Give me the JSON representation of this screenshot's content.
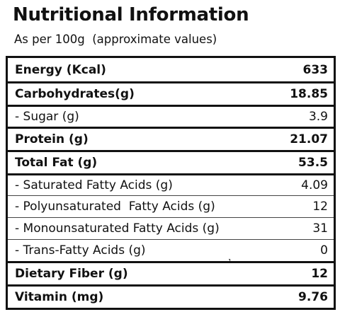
{
  "header": {
    "title": "Nutritional Information",
    "subtitle": "As per 100g  (approximate values)"
  },
  "table": {
    "rows": [
      {
        "label": "Energy (Kcal)",
        "value": "633",
        "bold": true
      },
      {
        "label": "Carbohydrates(g)",
        "value": "18.85",
        "bold": true
      },
      {
        "label": "- Sugar (g)",
        "value": "3.9",
        "bold": false
      },
      {
        "label": "Protein (g)",
        "value": "21.07",
        "bold": true
      },
      {
        "label": "Total Fat (g)",
        "value": "53.5",
        "bold": true
      },
      {
        "label": "- Saturated Fatty Acids (g)",
        "value": "4.09",
        "bold": false
      },
      {
        "label": "- Polyunsaturated  Fatty Acids (g)",
        "value": "12",
        "bold": false
      },
      {
        "label": "- Monounsaturated Fatty Acids (g)",
        "value": "31",
        "bold": false
      },
      {
        "label": "- Trans-Fatty Acids (g)",
        "value": "0",
        "bold": false
      },
      {
        "label": "Dietary Fiber (g)",
        "value": "12",
        "bold": true
      },
      {
        "label": "Vitamin (mg)",
        "value": "9.76",
        "bold": true
      }
    ]
  },
  "footnote_mark": "1"
}
